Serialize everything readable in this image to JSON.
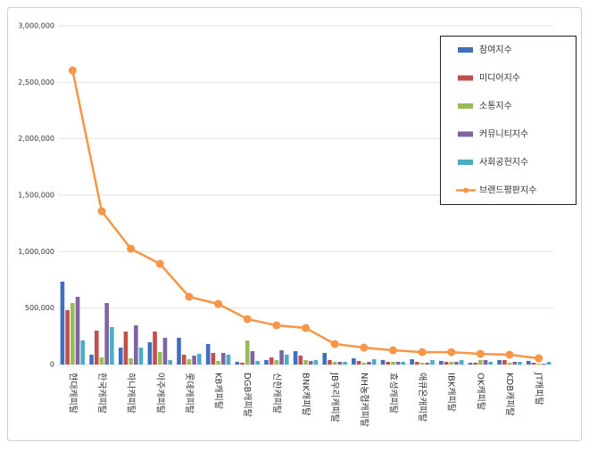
{
  "chart_data": {
    "type": "bar",
    "categories": [
      "현대캐피탈",
      "한국캐피탈",
      "하나캐피탈",
      "아주캐피탈",
      "롯데캐피탈",
      "KB캐피탈",
      "DGB캐피탈",
      "신한캐피탈",
      "BNK캐피탈",
      "JB우리캐피탈",
      "NH농협캐피탈",
      "효성캐피탈",
      "애큐온캐피탈",
      "IBK캐피탈",
      "OK캐피탈",
      "KDB캐피탈",
      "JT캐피탈"
    ],
    "series": [
      {
        "name": "참여지수",
        "type": "bar",
        "color": "#3f6fbf",
        "values": [
          734000,
          87000,
          150000,
          197000,
          237000,
          182000,
          24000,
          40000,
          118000,
          103000,
          55000,
          40000,
          47000,
          32000,
          16000,
          40000,
          32000
        ]
      },
      {
        "name": "미디어지수",
        "type": "bar",
        "color": "#c0504d",
        "values": [
          482000,
          300000,
          292000,
          292000,
          87000,
          103000,
          16000,
          63000,
          79000,
          40000,
          32000,
          24000,
          24000,
          24000,
          16000,
          40000,
          16000
        ]
      },
      {
        "name": "소통지수",
        "type": "bar",
        "color": "#9bbb59",
        "values": [
          545000,
          63000,
          55000,
          110000,
          47000,
          32000,
          213000,
          40000,
          40000,
          24000,
          16000,
          24000,
          16000,
          24000,
          40000,
          16000,
          8000
        ]
      },
      {
        "name": "커뮤니티지수",
        "type": "bar",
        "color": "#8064a2",
        "values": [
          600000,
          545000,
          347000,
          237000,
          79000,
          103000,
          118000,
          126000,
          32000,
          24000,
          24000,
          24000,
          16000,
          24000,
          40000,
          24000,
          8000
        ]
      },
      {
        "name": "사회공헌지수",
        "type": "bar",
        "color": "#4bacc6",
        "values": [
          213000,
          332000,
          150000,
          40000,
          95000,
          87000,
          32000,
          87000,
          40000,
          24000,
          47000,
          24000,
          40000,
          40000,
          24000,
          24000,
          24000
        ]
      },
      {
        "name": "브랜드평판지수",
        "type": "line",
        "color": "#f79646",
        "values": [
          2605000,
          1358000,
          1026000,
          892000,
          600000,
          537000,
          403000,
          347000,
          324000,
          182000,
          150000,
          126000,
          110000,
          110000,
          95000,
          87000,
          55000
        ]
      }
    ],
    "ylim": [
      0,
      3000000
    ],
    "yticks": [
      0,
      {
        "value": 500000,
        "label": "500,000"
      },
      {
        "value": 1000000,
        "label": "1,000,000"
      },
      {
        "value": 1500000,
        "label": "1,500,000"
      },
      {
        "value": 2000000,
        "label": "2,000,000"
      },
      {
        "value": 2500000,
        "label": "2,500,000"
      },
      {
        "value": 3000000,
        "label": "3,000,000"
      }
    ],
    "grid": true,
    "legend": "top-right"
  }
}
